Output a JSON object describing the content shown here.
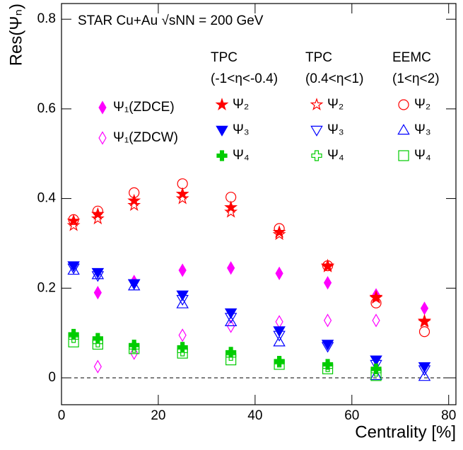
{
  "chart_data": {
    "type": "scatter",
    "title": "STAR Cu+Au √sNN = 200 GeV",
    "x_label": "Centrality [%]",
    "y_label": "Res(Ψₙ)",
    "xlim": [
      0,
      81.5
    ],
    "ylim": [
      -0.06,
      0.835
    ],
    "xticks": [
      0,
      20,
      40,
      60,
      80
    ],
    "yticks": [
      0,
      0.2,
      0.4,
      0.6,
      0.8
    ],
    "legend_headers": [
      [
        "TPC",
        "(-1<η<-0.4)"
      ],
      [
        "TPC",
        "(0.4<η<1)"
      ],
      [
        "EEMC",
        "(1<η<2)"
      ]
    ],
    "series": [
      {
        "name": "Ψ₁(ZDCE)",
        "color": "#ff00ff",
        "marker": "diamond",
        "filled": true,
        "x": [
          7.5,
          15,
          25,
          35,
          45,
          55,
          65,
          75
        ],
        "values": [
          0.19,
          0.215,
          0.24,
          0.245,
          0.233,
          0.212,
          0.185,
          0.155
        ]
      },
      {
        "name": "Ψ₁(ZDCW)",
        "color": "#ff00ff",
        "marker": "diamond",
        "filled": false,
        "x": [
          7.5,
          15,
          25,
          35,
          45,
          55,
          65
        ],
        "values": [
          0.025,
          0.055,
          0.095,
          0.115,
          0.125,
          0.128,
          0.128
        ]
      },
      {
        "name": "Ψ₂",
        "color": "#ff0000",
        "marker": "star",
        "filled": true,
        "x": [
          2.5,
          7.5,
          15,
          25,
          35,
          45,
          55,
          65,
          75
        ],
        "values": [
          0.35,
          0.365,
          0.395,
          0.41,
          0.38,
          0.325,
          0.25,
          0.18,
          0.127
        ]
      },
      {
        "name": "Ψ₂",
        "color": "#ff0000",
        "marker": "star",
        "filled": false,
        "x": [
          2.5,
          7.5,
          15,
          25,
          35,
          45,
          55,
          65,
          75
        ],
        "values": [
          0.34,
          0.355,
          0.385,
          0.4,
          0.37,
          0.32,
          0.248,
          0.178,
          0.125
        ]
      },
      {
        "name": "Ψ₂",
        "color": "#ff0000",
        "marker": "circle",
        "filled": false,
        "x": [
          2.5,
          7.5,
          15,
          25,
          35,
          45,
          55,
          65,
          75
        ],
        "values": [
          0.353,
          0.372,
          0.413,
          0.433,
          0.403,
          0.333,
          0.25,
          0.167,
          0.103
        ]
      },
      {
        "name": "Ψ₃",
        "color": "#0000ff",
        "marker": "tri-down",
        "filled": true,
        "x": [
          2.5,
          7.5,
          15,
          25,
          35,
          45,
          55,
          65,
          75
        ],
        "values": [
          0.25,
          0.235,
          0.21,
          0.185,
          0.145,
          0.105,
          0.075,
          0.04,
          0.025
        ]
      },
      {
        "name": "Ψ₃",
        "color": "#0000ff",
        "marker": "tri-down",
        "filled": false,
        "x": [
          2.5,
          7.5,
          15,
          25,
          35,
          45,
          55,
          65,
          75
        ],
        "values": [
          0.245,
          0.228,
          0.21,
          0.175,
          0.135,
          0.095,
          0.07,
          0.03,
          0.018
        ]
      },
      {
        "name": "Ψ₃",
        "color": "#0000ff",
        "marker": "tri-up",
        "filled": false,
        "x": [
          2.5,
          7.5,
          15,
          25,
          35,
          45,
          65,
          75
        ],
        "values": [
          0.24,
          0.23,
          0.205,
          0.165,
          0.125,
          0.08,
          0.005,
          0.003
        ]
      },
      {
        "name": "Ψ₄",
        "color": "#00cc00",
        "marker": "cross",
        "filled": true,
        "x": [
          2.5,
          7.5,
          15,
          25,
          35,
          45,
          55,
          65
        ],
        "values": [
          0.097,
          0.088,
          0.073,
          0.068,
          0.057,
          0.037,
          0.03,
          0.02
        ]
      },
      {
        "name": "Ψ₄",
        "color": "#00cc00",
        "marker": "cross",
        "filled": false,
        "x": [
          2.5,
          7.5,
          15,
          25,
          35,
          45,
          55,
          65
        ],
        "values": [
          0.09,
          0.08,
          0.068,
          0.06,
          0.05,
          0.035,
          0.025,
          0.015
        ]
      },
      {
        "name": "Ψ₄",
        "color": "#00cc00",
        "marker": "square",
        "filled": false,
        "x": [
          2.5,
          7.5,
          15,
          25,
          35,
          45,
          55,
          65
        ],
        "values": [
          0.08,
          0.075,
          0.065,
          0.055,
          0.04,
          0.03,
          0.02,
          0.005
        ]
      }
    ]
  }
}
